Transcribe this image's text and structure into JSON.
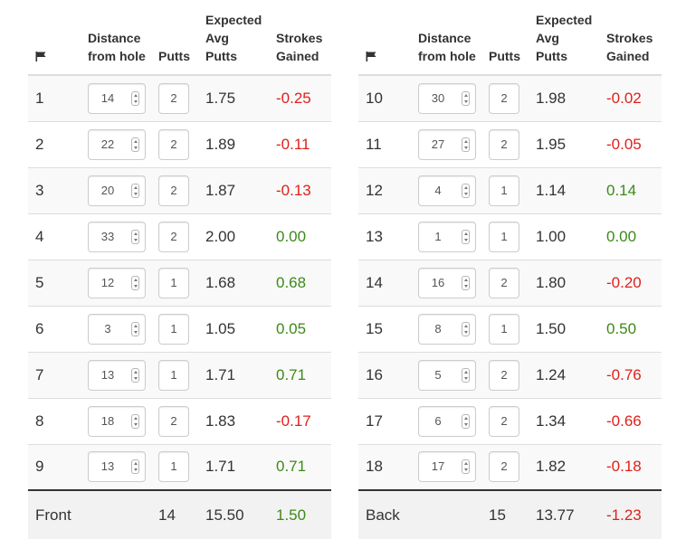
{
  "header": {
    "flag_icon": "flag-icon",
    "distance_line1": "Distance",
    "distance_line2": "from hole",
    "putts": "Putts",
    "expected_line1": "Expected",
    "expected_line2": "Avg",
    "expected_line3": "Putts",
    "strokes_line1": "Strokes",
    "strokes_line2": "Gained"
  },
  "colors": {
    "negative": "#e0201b",
    "positive": "#3c8a17"
  },
  "front": {
    "rows": [
      {
        "hole": "1",
        "distance": "14",
        "putts": "2",
        "expected": "1.75",
        "strokes": "-0.25"
      },
      {
        "hole": "2",
        "distance": "22",
        "putts": "2",
        "expected": "1.89",
        "strokes": "-0.11"
      },
      {
        "hole": "3",
        "distance": "20",
        "putts": "2",
        "expected": "1.87",
        "strokes": "-0.13"
      },
      {
        "hole": "4",
        "distance": "33",
        "putts": "2",
        "expected": "2.00",
        "strokes": "0.00"
      },
      {
        "hole": "5",
        "distance": "12",
        "putts": "1",
        "expected": "1.68",
        "strokes": "0.68"
      },
      {
        "hole": "6",
        "distance": "3",
        "putts": "1",
        "expected": "1.05",
        "strokes": "0.05"
      },
      {
        "hole": "7",
        "distance": "13",
        "putts": "1",
        "expected": "1.71",
        "strokes": "0.71"
      },
      {
        "hole": "8",
        "distance": "18",
        "putts": "2",
        "expected": "1.83",
        "strokes": "-0.17"
      },
      {
        "hole": "9",
        "distance": "13",
        "putts": "1",
        "expected": "1.71",
        "strokes": "0.71"
      }
    ],
    "total": {
      "label": "Front",
      "putts": "14",
      "expected": "15.50",
      "strokes": "1.50"
    }
  },
  "back": {
    "rows": [
      {
        "hole": "10",
        "distance": "30",
        "putts": "2",
        "expected": "1.98",
        "strokes": "-0.02"
      },
      {
        "hole": "11",
        "distance": "27",
        "putts": "2",
        "expected": "1.95",
        "strokes": "-0.05"
      },
      {
        "hole": "12",
        "distance": "4",
        "putts": "1",
        "expected": "1.14",
        "strokes": "0.14"
      },
      {
        "hole": "13",
        "distance": "1",
        "putts": "1",
        "expected": "1.00",
        "strokes": "0.00"
      },
      {
        "hole": "14",
        "distance": "16",
        "putts": "2",
        "expected": "1.80",
        "strokes": "-0.20"
      },
      {
        "hole": "15",
        "distance": "8",
        "putts": "1",
        "expected": "1.50",
        "strokes": "0.50"
      },
      {
        "hole": "16",
        "distance": "5",
        "putts": "2",
        "expected": "1.24",
        "strokes": "-0.76"
      },
      {
        "hole": "17",
        "distance": "6",
        "putts": "2",
        "expected": "1.34",
        "strokes": "-0.66"
      },
      {
        "hole": "18",
        "distance": "17",
        "putts": "2",
        "expected": "1.82",
        "strokes": "-0.18"
      }
    ],
    "total": {
      "label": "Back",
      "putts": "15",
      "expected": "13.77",
      "strokes": "-1.23"
    }
  }
}
